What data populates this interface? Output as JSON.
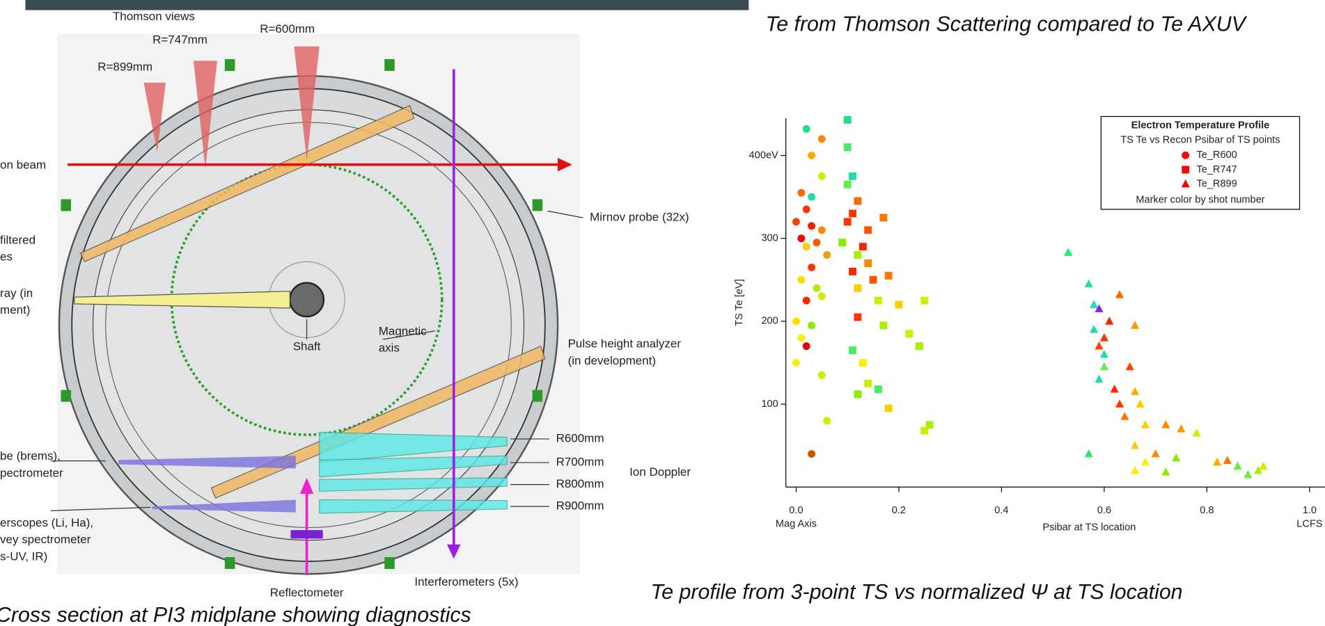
{
  "diagram": {
    "caption": "Cross section at PI3 midplane showing diagnostics",
    "labels": [
      "Thomson views",
      "R=747mm",
      "R=600mm",
      "R=899mm",
      "on beam",
      "filtered",
      "es",
      "ray (in",
      "ment)",
      "Mirnov probe (32x)",
      "Shaft",
      "Magnetic",
      "axis",
      "Pulse height analyzer",
      "(in development)",
      "be (brems),",
      "pectrometer",
      "R600mm",
      "R700mm",
      "R800mm",
      "R900mm",
      "Ion Doppler",
      "erscopes (Li, Ha),",
      "vey spectrometer",
      "s-UV, IR)",
      "Reflectometer",
      "Interferometers (5x)"
    ]
  },
  "chart_data": {
    "type": "scatter",
    "title": "Te from Thomson Scattering compared to Te AXUV",
    "caption": "Te profile from 3-point TS vs normalized Ψ at TS location",
    "x_label": "Psibar at TS location",
    "y_label": "TS Te [eV]",
    "x_annotations": [
      {
        "x": 0,
        "text": "Mag Axis"
      },
      {
        "x": 1,
        "text": "LCFS"
      }
    ],
    "legend_title": "Electron Temperature Profile",
    "legend_subtitle": "TS Te vs Recon Psibar of TS points",
    "legend_note": "Marker color by shot number",
    "xlim": [
      -0.02,
      1.03
    ],
    "ylim": [
      0,
      445
    ],
    "xticks": [
      {
        "value": 0,
        "label": "0.0"
      },
      0.2,
      0.4,
      0.6,
      0.8,
      {
        "value": 1,
        "label": "1.0"
      }
    ],
    "yticks": [
      100,
      200,
      300,
      {
        "value": 400,
        "label": "400eV"
      }
    ],
    "legend_color": "#ff0000",
    "series": [
      {
        "name": "Te_R600",
        "marker": "circle",
        "x": [
          0.02,
          0.05,
          0.03,
          0.05,
          0.01,
          0.03,
          0.02,
          0.0,
          0.03,
          0.05,
          0.01,
          0.04,
          0.02,
          0.06,
          0.03,
          0.01,
          0.04,
          0.02,
          0.05,
          0.0,
          0.03,
          0.01,
          0.02,
          0.0,
          0.05,
          0.06,
          0.03
        ],
        "values": [
          432,
          420,
          400,
          375,
          355,
          350,
          335,
          320,
          315,
          310,
          300,
          295,
          290,
          280,
          265,
          250,
          240,
          225,
          230,
          200,
          195,
          180,
          170,
          150,
          135,
          80,
          40
        ],
        "colors": [
          "#22dd88",
          "#ff8800",
          "#ffaa00",
          "#ccee00",
          "#ff6600",
          "#22ddaa",
          "#ff3300",
          "#ff4400",
          "#ee2200",
          "#ff8800",
          "#ff0000",
          "#ff5500",
          "#ffcc00",
          "#ff9900",
          "#ff3300",
          "#ffdd00",
          "#aaee00",
          "#ff2200",
          "#ccee00",
          "#ffdd00",
          "#88ee00",
          "#ffee00",
          "#ee0000",
          "#ffee00",
          "#ccee00",
          "#ccee00",
          "#cc5500"
        ]
      },
      {
        "name": "Te_R747",
        "marker": "square",
        "x": [
          0.1,
          0.1,
          0.11,
          0.1,
          0.12,
          0.11,
          0.17,
          0.1,
          0.14,
          0.09,
          0.13,
          0.12,
          0.14,
          0.11,
          0.15,
          0.18,
          0.12,
          0.16,
          0.25,
          0.12,
          0.2,
          0.17,
          0.22,
          0.11,
          0.24,
          0.13,
          0.14,
          0.16,
          0.12,
          0.18,
          0.26,
          0.25
        ],
        "values": [
          443,
          410,
          375,
          365,
          345,
          330,
          325,
          320,
          310,
          295,
          290,
          280,
          270,
          260,
          250,
          255,
          240,
          225,
          225,
          205,
          220,
          195,
          185,
          165,
          170,
          150,
          125,
          118,
          112,
          95,
          75,
          68
        ],
        "colors": [
          "#22dd88",
          "#44ee66",
          "#22ddaa",
          "#66ee44",
          "#ff6600",
          "#ff3300",
          "#ff7700",
          "#ff3300",
          "#ff5500",
          "#88ee00",
          "#ff2200",
          "#aaee00",
          "#ff8800",
          "#ff2200",
          "#ff5500",
          "#ff7700",
          "#ffcc00",
          "#ccee00",
          "#ccee00",
          "#ff3300",
          "#ffcc00",
          "#aaee00",
          "#ccee00",
          "#44ee66",
          "#aaee00",
          "#ffee00",
          "#ccee00",
          "#44ee66",
          "#88ee00",
          "#ffcc00",
          "#aaee00",
          "#ccee00"
        ]
      },
      {
        "name": "Te_R899",
        "marker": "triangle",
        "x": [
          0.53,
          0.57,
          0.58,
          0.59,
          0.63,
          0.61,
          0.58,
          0.6,
          0.59,
          0.6,
          0.66,
          0.6,
          0.65,
          0.59,
          0.62,
          0.66,
          0.63,
          0.67,
          0.64,
          0.68,
          0.72,
          0.75,
          0.78,
          0.57,
          0.66,
          0.7,
          0.68,
          0.74,
          0.82,
          0.84,
          0.86,
          0.9,
          0.91,
          0.88,
          0.72,
          0.66
        ],
        "values": [
          283,
          245,
          220,
          215,
          232,
          200,
          190,
          180,
          170,
          160,
          195,
          145,
          145,
          130,
          118,
          115,
          100,
          100,
          85,
          75,
          75,
          70,
          65,
          40,
          50,
          40,
          30,
          35,
          30,
          32,
          25,
          20,
          25,
          15,
          18,
          20
        ],
        "colors": [
          "#22ee66",
          "#22ddaa",
          "#22ddbb",
          "#8822ff",
          "#ff6600",
          "#ff2200",
          "#22ddaa",
          "#ff3300",
          "#ff4400",
          "#22ddaa",
          "#ff9900",
          "#66ee44",
          "#ff4400",
          "#22ddaa",
          "#ff2200",
          "#ffaa00",
          "#ff3300",
          "#ffcc00",
          "#ff7700",
          "#ffcc00",
          "#ff8800",
          "#ff9900",
          "#ccee00",
          "#22ee66",
          "#ffcc00",
          "#ff8800",
          "#ffee00",
          "#88ee00",
          "#ffaa00",
          "#ff7700",
          "#66ee44",
          "#aaee00",
          "#ccee00",
          "#66ee44",
          "#88ee00",
          "#ffee00"
        ]
      }
    ]
  }
}
